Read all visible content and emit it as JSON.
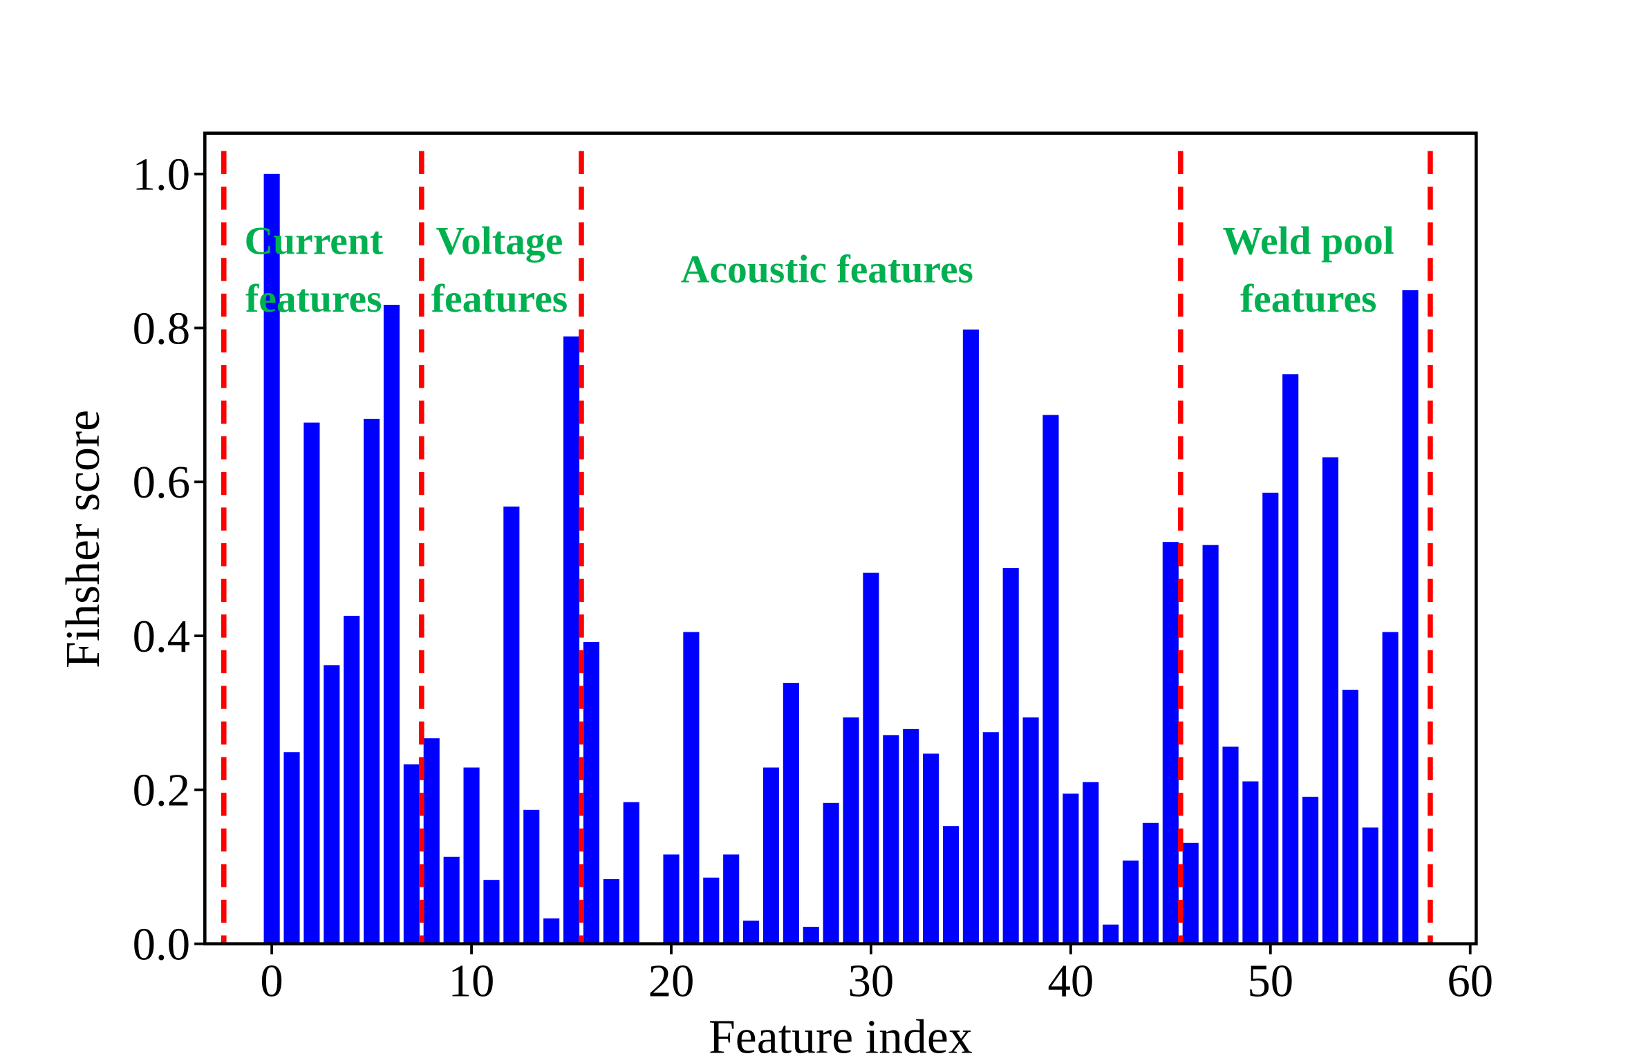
{
  "chart_data": {
    "type": "bar",
    "title": "",
    "xlabel": "Feature index",
    "ylabel": "Fihsher score",
    "xlim": [
      -3.35,
      60.3
    ],
    "ylim": [
      0,
      1.053
    ],
    "xticks": [
      0,
      10,
      20,
      30,
      40,
      50,
      60
    ],
    "yticks": [
      0.0,
      0.2,
      0.4,
      0.6,
      0.8,
      1.0
    ],
    "xtick_labels": [
      "0",
      "10",
      "20",
      "30",
      "40",
      "50",
      "60"
    ],
    "ytick_labels": [
      "0.0",
      "0.2",
      "0.4",
      "0.6",
      "0.8",
      "1.0"
    ],
    "grid": false,
    "bar_color": "#0000ff",
    "x": [
      0,
      1,
      2,
      3,
      4,
      5,
      6,
      7,
      8,
      9,
      10,
      11,
      12,
      13,
      14,
      15,
      16,
      17,
      18,
      19,
      20,
      21,
      22,
      23,
      24,
      25,
      26,
      27,
      28,
      29,
      30,
      31,
      32,
      33,
      34,
      35,
      36,
      37,
      38,
      39,
      40,
      41,
      42,
      43,
      44,
      45,
      46,
      47,
      48,
      49,
      50,
      51,
      52,
      53,
      54,
      55,
      56,
      57
    ],
    "values": [
      1.0,
      0.249,
      0.677,
      0.362,
      0.426,
      0.682,
      0.83,
      0.233,
      0.267,
      0.113,
      0.229,
      0.083,
      0.568,
      0.174,
      0.033,
      0.789,
      0.392,
      0.084,
      0.184,
      0.0,
      0.116,
      0.405,
      0.086,
      0.116,
      0.03,
      0.229,
      0.339,
      0.022,
      0.183,
      0.294,
      0.482,
      0.271,
      0.279,
      0.247,
      0.153,
      0.798,
      0.275,
      0.488,
      0.294,
      0.687,
      0.195,
      0.21,
      0.025,
      0.108,
      0.157,
      0.522,
      0.131,
      0.518,
      0.256,
      0.211,
      0.586,
      0.74,
      0.191,
      0.632,
      0.33,
      0.151,
      0.405,
      0.849
    ],
    "divider_color": "#ff0000",
    "dividers": [
      -2.4,
      7.5,
      15.5,
      45.5,
      58
    ],
    "annotation_color": "#00b050",
    "annotations": [
      {
        "lines": [
          "Current",
          "features"
        ],
        "x": 2.1,
        "y": [
          0.914,
          0.839
        ]
      },
      {
        "lines": [
          "Voltage",
          "features"
        ],
        "x": 11.4,
        "y": [
          0.914,
          0.839
        ]
      },
      {
        "lines": [
          "Acoustic features"
        ],
        "x": 27.8,
        "y": [
          0.877
        ]
      },
      {
        "lines": [
          "Weld pool",
          "features"
        ],
        "x": 51.9,
        "y": [
          0.914,
          0.839
        ]
      }
    ]
  }
}
